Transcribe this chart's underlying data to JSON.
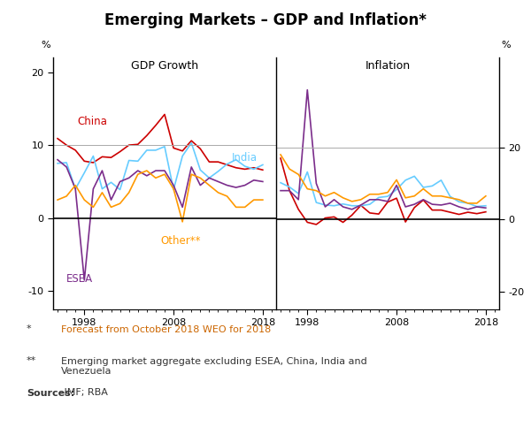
{
  "title": "Emerging Markets – GDP and Inflation*",
  "footnote1_star": "*",
  "footnote1_text": "Forecast from October 2018 WEO for 2018",
  "footnote2_star": "**",
  "footnote2_text": "Emerging market aggregate excluding ESEA, China, India and\nVenezuela",
  "footnote3_label": "Sources:",
  "footnote3_text": " IMF; RBA",
  "gdp_years": [
    1995,
    1996,
    1997,
    1998,
    1999,
    2000,
    2001,
    2002,
    2003,
    2004,
    2005,
    2006,
    2007,
    2008,
    2009,
    2010,
    2011,
    2012,
    2013,
    2014,
    2015,
    2016,
    2017,
    2018
  ],
  "gdp_china": [
    10.9,
    10.0,
    9.3,
    7.8,
    7.6,
    8.4,
    8.3,
    9.1,
    10.0,
    10.1,
    11.3,
    12.7,
    14.2,
    9.6,
    9.2,
    10.6,
    9.5,
    7.7,
    7.7,
    7.3,
    6.9,
    6.7,
    6.9,
    6.6
  ],
  "gdp_india": [
    7.5,
    7.6,
    4.0,
    6.2,
    8.5,
    4.0,
    4.9,
    3.9,
    7.9,
    7.8,
    9.3,
    9.3,
    9.8,
    3.9,
    8.5,
    10.3,
    6.6,
    5.5,
    6.4,
    7.4,
    8.0,
    7.1,
    6.7,
    7.3
  ],
  "gdp_esea": [
    8.0,
    7.0,
    4.0,
    -8.5,
    4.0,
    6.5,
    2.5,
    5.0,
    5.5,
    6.5,
    5.8,
    6.5,
    6.5,
    4.5,
    1.5,
    7.0,
    4.5,
    5.5,
    5.0,
    4.5,
    4.2,
    4.5,
    5.2,
    5.0
  ],
  "gdp_other": [
    2.5,
    3.0,
    4.5,
    2.5,
    1.5,
    3.5,
    1.5,
    2.0,
    3.5,
    6.0,
    6.5,
    5.5,
    6.0,
    4.0,
    -0.5,
    6.0,
    5.5,
    4.5,
    3.5,
    3.0,
    1.5,
    1.5,
    2.5,
    2.5
  ],
  "inf_years": [
    1995,
    1996,
    1997,
    1998,
    1999,
    2000,
    2001,
    2002,
    2003,
    2004,
    2005,
    2006,
    2007,
    2008,
    2009,
    2010,
    2011,
    2012,
    2013,
    2014,
    2015,
    2016,
    2017,
    2018
  ],
  "inf_china": [
    17.0,
    8.0,
    2.8,
    -0.8,
    -1.4,
    0.4,
    0.7,
    -0.8,
    1.2,
    3.9,
    1.8,
    1.5,
    4.8,
    5.9,
    -0.7,
    3.3,
    5.4,
    2.6,
    2.6,
    2.0,
    1.4,
    2.0,
    1.6,
    2.1
  ],
  "inf_india": [
    10.2,
    9.0,
    7.2,
    13.2,
    4.7,
    4.0,
    3.8,
    4.3,
    3.8,
    3.8,
    4.2,
    6.1,
    6.4,
    8.3,
    10.9,
    12.0,
    8.9,
    9.3,
    10.9,
    6.4,
    4.9,
    4.5,
    3.6,
    3.8
  ],
  "inf_esea": [
    8.0,
    8.0,
    5.5,
    36.0,
    10.0,
    3.5,
    5.5,
    3.5,
    2.8,
    4.0,
    5.5,
    5.5,
    5.0,
    9.5,
    3.5,
    4.2,
    5.5,
    4.2,
    4.0,
    4.5,
    3.5,
    2.8,
    3.5,
    3.2
  ],
  "inf_other": [
    18.0,
    14.0,
    12.5,
    8.5,
    8.0,
    6.5,
    7.5,
    6.0,
    5.0,
    5.5,
    7.0,
    7.0,
    7.5,
    11.0,
    6.0,
    6.5,
    8.5,
    6.5,
    6.5,
    6.0,
    5.5,
    4.5,
    4.5,
    6.5
  ],
  "color_china": "#cc0000",
  "color_india": "#66ccff",
  "color_esea": "#7b2d8b",
  "color_other": "#ff9900",
  "gdp_ylim": [
    -12.5,
    22
  ],
  "gdp_yticks": [
    -10,
    0,
    10,
    20
  ],
  "gdp_ytick_labels": [
    "-10",
    "0",
    "10",
    "20"
  ],
  "inf_ylim": [
    -25,
    45
  ],
  "inf_yticks": [
    -20,
    0,
    20
  ],
  "inf_ytick_labels": [
    "-20",
    "0",
    "20"
  ],
  "gdp_hline_value": 10,
  "inf_hline_value": 20,
  "xmin": 1994.5,
  "xmax": 2019.5,
  "xticks": [
    1998,
    2008,
    2018
  ],
  "background_color": "#ffffff",
  "line_width": 1.2
}
